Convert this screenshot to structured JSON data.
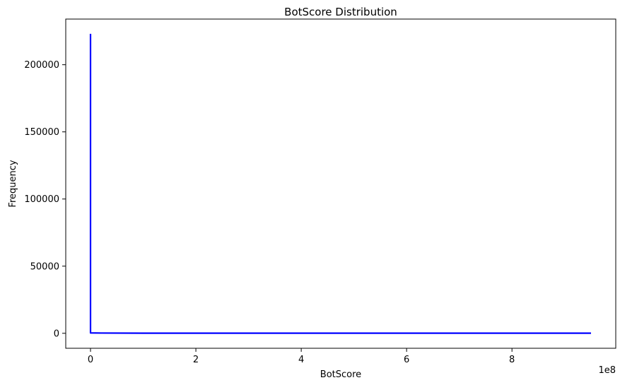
{
  "chart_data": {
    "type": "line",
    "title": "BotScore Distribution",
    "xlabel": "BotScore",
    "ylabel": "Frequency",
    "x_offset_label": "1e8",
    "xlim": [
      -0.47,
      9.97
    ],
    "ylim": [
      -11150,
      234000
    ],
    "x_ticks": [
      0,
      2,
      4,
      6,
      8
    ],
    "y_ticks": [
      0,
      50000,
      100000,
      150000,
      200000
    ],
    "series": [
      {
        "color": "#0000ff",
        "points": [
          [
            0,
            223000
          ],
          [
            0,
            300
          ],
          [
            0.2,
            200
          ],
          [
            1,
            100
          ],
          [
            9.5,
            100
          ]
        ]
      }
    ],
    "grid": false,
    "legend": "none"
  }
}
